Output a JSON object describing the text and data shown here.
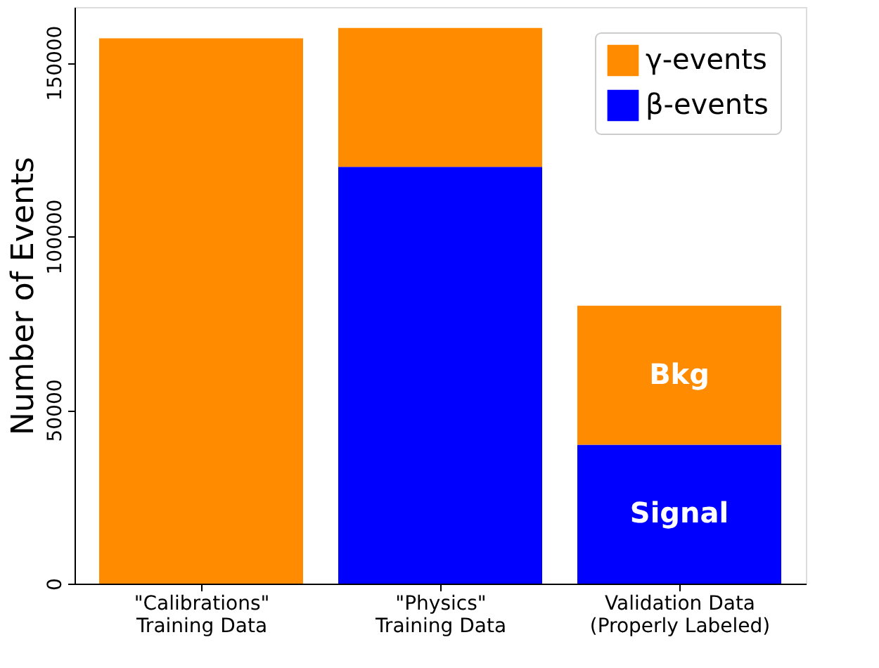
{
  "chart_data": {
    "type": "bar",
    "stacked": true,
    "ylabel": "Number of Events",
    "categories": [
      "\"Calibrations\"\nTraining Data",
      "\"Physics\"\nTraining Data",
      "Validation Data\n(Properly Labeled)"
    ],
    "series": [
      {
        "name": "β-events",
        "color": "#0000ff",
        "values": [
          0,
          120000,
          40000
        ]
      },
      {
        "name": "γ-events",
        "color": "#ff8c00",
        "values": [
          157000,
          40000,
          40000
        ]
      }
    ],
    "ylim": [
      0,
      166000
    ],
    "yticks": [
      0,
      50000,
      100000,
      150000
    ],
    "grid": false,
    "legend": "top right",
    "annotations": [
      "Bkg",
      "Signal"
    ]
  }
}
